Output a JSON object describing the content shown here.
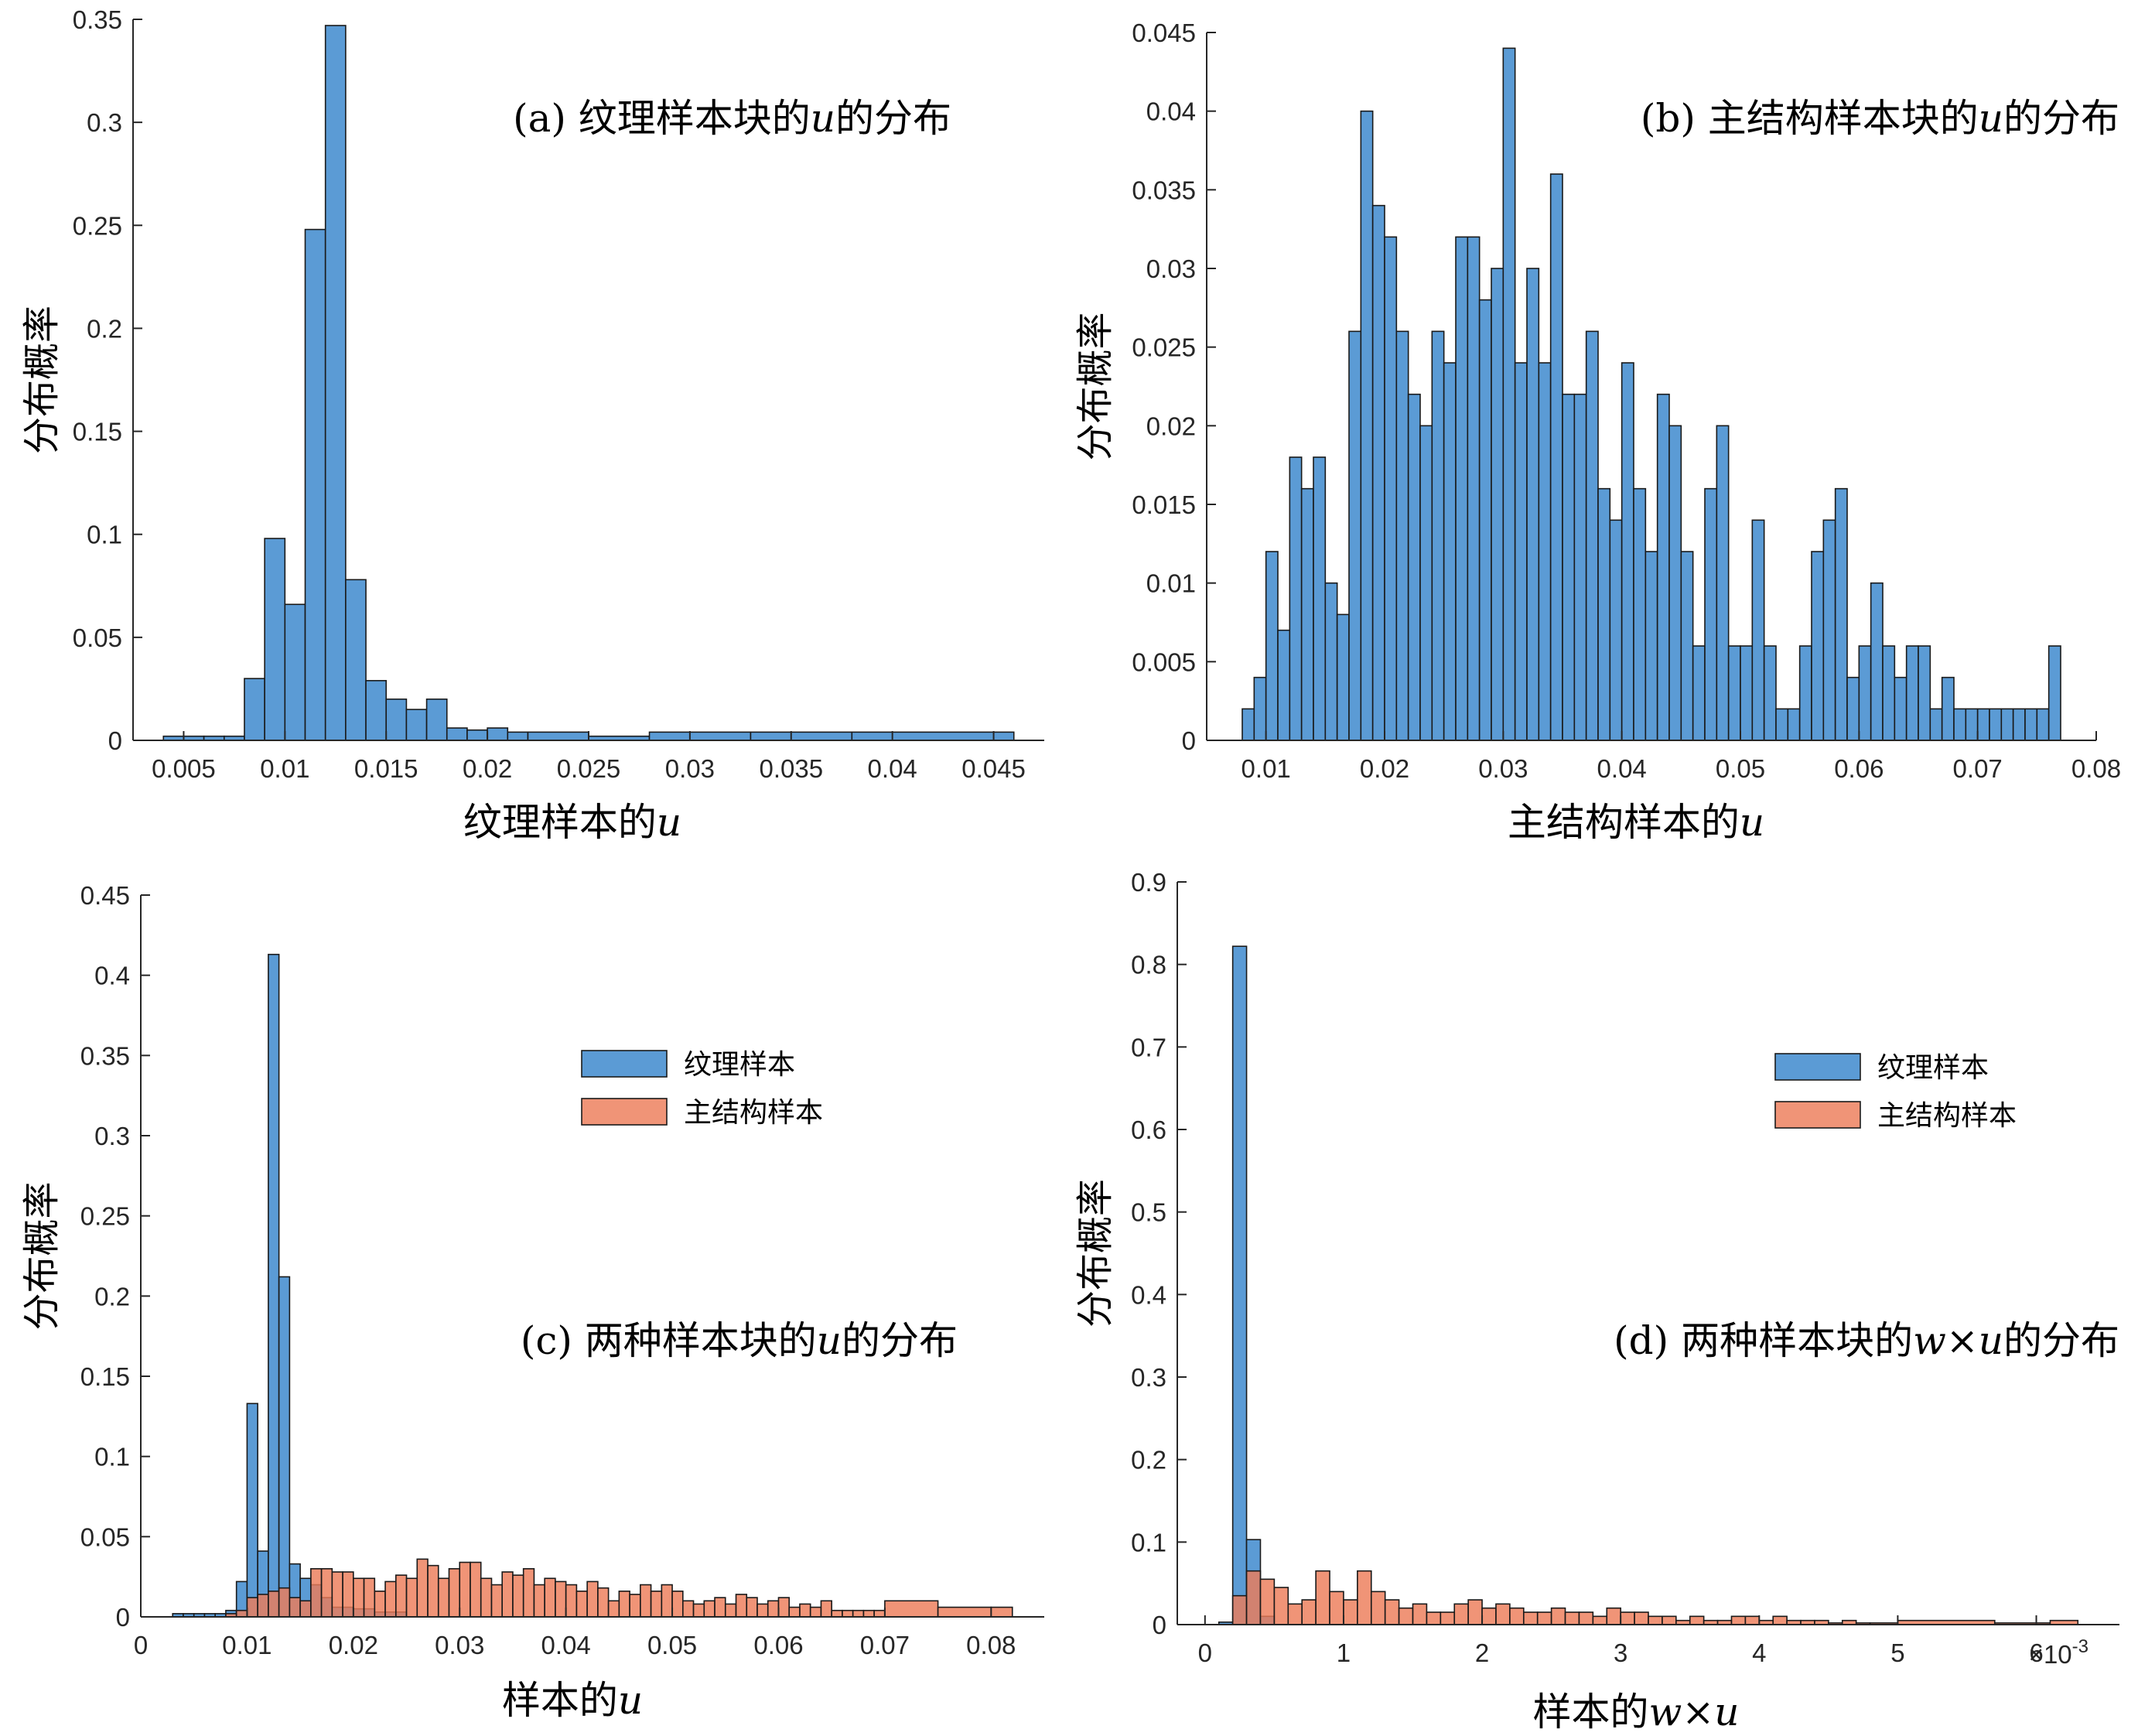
{
  "colors": {
    "texture": "#5b9bd5",
    "structure": "#ed7d59",
    "edge": "#1a1a1a",
    "axis": "#262626"
  },
  "legend": {
    "texture_label": "纹理样本",
    "structure_label": "主结构样本"
  },
  "chart_data": [
    {
      "type": "bar",
      "title_prefix": "(a) 纹理样本块的",
      "title_var": "u",
      "title_suffix": "的分布",
      "xlabel_prefix": "纹理样本的",
      "xlabel_var": "u",
      "ylabel": "分布概率",
      "xlim": [
        0.0025,
        0.0475
      ],
      "ylim": [
        0,
        0.35
      ],
      "xticks": [
        "0.005",
        "0.01",
        "0.015",
        "0.02",
        "0.025",
        "0.03",
        "0.035",
        "0.04",
        "0.045"
      ],
      "xtick_values": [
        0.005,
        0.01,
        0.015,
        0.02,
        0.025,
        0.03,
        0.035,
        0.04,
        0.045
      ],
      "yticks": [
        "0",
        "0.05",
        "0.1",
        "0.15",
        "0.2",
        "0.25",
        "0.3",
        "0.35"
      ],
      "ytick_values": [
        0,
        0.05,
        0.1,
        0.15,
        0.2,
        0.25,
        0.3,
        0.35
      ],
      "bin_edges": [
        0.004,
        0.005,
        0.006,
        0.007,
        0.008,
        0.009,
        0.01,
        0.011,
        0.012,
        0.013,
        0.014,
        0.015,
        0.016,
        0.017,
        0.018,
        0.019,
        0.02,
        0.021,
        0.022,
        0.025,
        0.028,
        0.033,
        0.038,
        0.046
      ],
      "series": [
        {
          "name": "纹理样本",
          "values": [
            0.002,
            0.002,
            0.002,
            0.002,
            0.03,
            0.098,
            0.066,
            0.248,
            0.347,
            0.078,
            0.029,
            0.02,
            0.015,
            0.02,
            0.006,
            0.005,
            0.006,
            0.004,
            0.004,
            0.002,
            0.004,
            0.004,
            0.004
          ]
        }
      ]
    },
    {
      "type": "bar",
      "title_prefix": "(b) 主结构样本块的",
      "title_var": "u",
      "title_suffix": "的分布",
      "xlabel_prefix": "主结构样本的",
      "xlabel_var": "u",
      "ylabel": "分布概率",
      "xlim": [
        0.005,
        0.08
      ],
      "ylim": [
        0,
        0.045
      ],
      "xticks": [
        "0.01",
        "0.02",
        "0.03",
        "0.04",
        "0.05",
        "0.06",
        "0.07",
        "0.08"
      ],
      "xtick_values": [
        0.01,
        0.02,
        0.03,
        0.04,
        0.05,
        0.06,
        0.07,
        0.08
      ],
      "yticks": [
        "0",
        "0.005",
        "0.01",
        "0.015",
        "0.02",
        "0.025",
        "0.03",
        "0.035",
        "0.04",
        "0.045"
      ],
      "ytick_values": [
        0,
        0.005,
        0.01,
        0.015,
        0.02,
        0.025,
        0.03,
        0.035,
        0.04,
        0.045
      ],
      "bin_edges": [
        0.008,
        0.009,
        0.01,
        0.011,
        0.012,
        0.013,
        0.014,
        0.015,
        0.016,
        0.017,
        0.018,
        0.019,
        0.02,
        0.021,
        0.022,
        0.023,
        0.024,
        0.025,
        0.026,
        0.027,
        0.028,
        0.029,
        0.03,
        0.031,
        0.032,
        0.033,
        0.034,
        0.035,
        0.036,
        0.037,
        0.038,
        0.039,
        0.04,
        0.041,
        0.042,
        0.043,
        0.044,
        0.045,
        0.046,
        0.047,
        0.048,
        0.049,
        0.05,
        0.051,
        0.052,
        0.053,
        0.054,
        0.055,
        0.056,
        0.057,
        0.058,
        0.059,
        0.06,
        0.061,
        0.062,
        0.063,
        0.064,
        0.065,
        0.066,
        0.067,
        0.068,
        0.069,
        0.07,
        0.071,
        0.072,
        0.073,
        0.074,
        0.075,
        0.076,
        0.077
      ],
      "series": [
        {
          "name": "主结构样本",
          "values": [
            0.002,
            0.004,
            0.012,
            0.007,
            0.018,
            0.016,
            0.018,
            0.01,
            0.008,
            0.026,
            0.04,
            0.034,
            0.032,
            0.026,
            0.022,
            0.02,
            0.026,
            0.024,
            0.032,
            0.032,
            0.028,
            0.03,
            0.044,
            0.024,
            0.03,
            0.024,
            0.036,
            0.022,
            0.022,
            0.026,
            0.016,
            0.014,
            0.024,
            0.016,
            0.012,
            0.022,
            0.02,
            0.012,
            0.006,
            0.016,
            0.02,
            0.006,
            0.006,
            0.014,
            0.006,
            0.002,
            0.002,
            0.006,
            0.012,
            0.014,
            0.016,
            0.004,
            0.006,
            0.01,
            0.006,
            0.004,
            0.006,
            0.006,
            0.002,
            0.004,
            0.002,
            0.002,
            0.002,
            0.002,
            0.002,
            0.002,
            0.002,
            0.002,
            0.006
          ]
        }
      ]
    },
    {
      "type": "bar",
      "title_prefix": "(c) 两种样本块的",
      "title_var": "u",
      "title_suffix": "的分布",
      "xlabel_prefix": "样本的",
      "xlabel_var": "u",
      "ylabel": "分布概率",
      "xlim": [
        0,
        0.085
      ],
      "ylim": [
        0,
        0.45
      ],
      "xticks": [
        "0",
        "0.01",
        "0.02",
        "0.03",
        "0.04",
        "0.05",
        "0.06",
        "0.07",
        "0.08"
      ],
      "xtick_values": [
        0,
        0.01,
        0.02,
        0.03,
        0.04,
        0.05,
        0.06,
        0.07,
        0.08
      ],
      "yticks": [
        "0",
        "0.05",
        "0.1",
        "0.15",
        "0.2",
        "0.25",
        "0.3",
        "0.35",
        "0.4",
        "0.45"
      ],
      "ytick_values": [
        0,
        0.05,
        0.1,
        0.15,
        0.2,
        0.25,
        0.3,
        0.35,
        0.4,
        0.45
      ],
      "legend_location": "upper-right",
      "series": [
        {
          "name": "纹理样本",
          "bin_edges": [
            0.003,
            0.004,
            0.005,
            0.006,
            0.007,
            0.008,
            0.009,
            0.01,
            0.011,
            0.012,
            0.013,
            0.014,
            0.015,
            0.016,
            0.017,
            0.018,
            0.02,
            0.022,
            0.025
          ],
          "values": [
            0.002,
            0.002,
            0.002,
            0.002,
            0.002,
            0.004,
            0.022,
            0.133,
            0.041,
            0.413,
            0.212,
            0.033,
            0.024,
            0.02,
            0.012,
            0.006,
            0.005,
            0.003
          ]
        },
        {
          "name": "主结构样本",
          "bin_edges": [
            0.008,
            0.009,
            0.01,
            0.011,
            0.012,
            0.013,
            0.014,
            0.015,
            0.016,
            0.017,
            0.018,
            0.019,
            0.02,
            0.021,
            0.022,
            0.023,
            0.024,
            0.025,
            0.026,
            0.027,
            0.028,
            0.029,
            0.03,
            0.031,
            0.032,
            0.033,
            0.034,
            0.035,
            0.036,
            0.037,
            0.038,
            0.039,
            0.04,
            0.041,
            0.042,
            0.043,
            0.044,
            0.045,
            0.046,
            0.047,
            0.048,
            0.049,
            0.05,
            0.051,
            0.052,
            0.053,
            0.054,
            0.055,
            0.056,
            0.057,
            0.058,
            0.059,
            0.06,
            0.061,
            0.062,
            0.063,
            0.064,
            0.065,
            0.066,
            0.067,
            0.068,
            0.069,
            0.07,
            0.075,
            0.08,
            0.082
          ],
          "values": [
            0.002,
            0.004,
            0.012,
            0.014,
            0.016,
            0.018,
            0.012,
            0.01,
            0.03,
            0.03,
            0.028,
            0.028,
            0.024,
            0.024,
            0.016,
            0.022,
            0.026,
            0.024,
            0.036,
            0.032,
            0.024,
            0.03,
            0.034,
            0.034,
            0.024,
            0.02,
            0.028,
            0.026,
            0.03,
            0.02,
            0.024,
            0.022,
            0.02,
            0.016,
            0.022,
            0.018,
            0.01,
            0.016,
            0.014,
            0.02,
            0.016,
            0.02,
            0.016,
            0.01,
            0.008,
            0.01,
            0.012,
            0.008,
            0.014,
            0.012,
            0.008,
            0.01,
            0.012,
            0.006,
            0.008,
            0.006,
            0.01,
            0.004,
            0.004,
            0.004,
            0.004,
            0.004,
            0.01,
            0.006,
            0.006
          ]
        }
      ]
    },
    {
      "type": "bar",
      "title_prefix": "(d) 两种样本块的",
      "title_var": "w×u",
      "title_suffix": "的分布",
      "xlabel_prefix": "样本的",
      "xlabel_var": "w×u",
      "ylabel": "分布概率",
      "x_multiplier": "×10",
      "x_multiplier_exponent": "-3",
      "xlim": [
        -0.0002,
        0.0066
      ],
      "ylim": [
        0,
        0.9
      ],
      "xticks": [
        "0",
        "1",
        "2",
        "3",
        "4",
        "5",
        "6"
      ],
      "xtick_values": [
        0,
        0.001,
        0.002,
        0.003,
        0.004,
        0.005,
        0.006
      ],
      "yticks": [
        "0",
        "0.1",
        "0.2",
        "0.3",
        "0.4",
        "0.5",
        "0.6",
        "0.7",
        "0.8",
        "0.9"
      ],
      "ytick_values": [
        0,
        0.1,
        0.2,
        0.3,
        0.4,
        0.5,
        0.6,
        0.7,
        0.8,
        0.9
      ],
      "legend_location": "upper-right",
      "series": [
        {
          "name": "纹理样本",
          "bin_edges": [
            0.0001,
            0.0002,
            0.0003,
            0.0004,
            0.0005
          ],
          "values": [
            0.003,
            0.822,
            0.103,
            0.01
          ]
        },
        {
          "name": "主结构样本",
          "bin_edges": [
            0.0002,
            0.0003,
            0.0004,
            0.0005,
            0.0006,
            0.0007,
            0.0008,
            0.0009,
            0.001,
            0.0011,
            0.0012,
            0.0013,
            0.0014,
            0.0015,
            0.0016,
            0.0017,
            0.0018,
            0.0019,
            0.002,
            0.0021,
            0.0022,
            0.0023,
            0.0024,
            0.0025,
            0.0026,
            0.0027,
            0.0028,
            0.0029,
            0.003,
            0.0031,
            0.0032,
            0.0033,
            0.0034,
            0.0035,
            0.0036,
            0.0037,
            0.0038,
            0.0039,
            0.004,
            0.0041,
            0.0042,
            0.0043,
            0.0044,
            0.0045,
            0.0046,
            0.0047,
            0.0048,
            0.005,
            0.0057,
            0.0061,
            0.0063
          ],
          "values": [
            0.035,
            0.065,
            0.055,
            0.045,
            0.025,
            0.03,
            0.065,
            0.04,
            0.03,
            0.065,
            0.04,
            0.03,
            0.02,
            0.025,
            0.015,
            0.015,
            0.025,
            0.03,
            0.02,
            0.025,
            0.02,
            0.015,
            0.015,
            0.02,
            0.015,
            0.015,
            0.01,
            0.02,
            0.015,
            0.015,
            0.01,
            0.01,
            0.005,
            0.01,
            0.005,
            0.005,
            0.01,
            0.01,
            0.005,
            0.01,
            0.005,
            0.005,
            0.005,
            0.002,
            0.005,
            0.002,
            0.002,
            0.005,
            0.002,
            0.005
          ]
        }
      ]
    }
  ]
}
